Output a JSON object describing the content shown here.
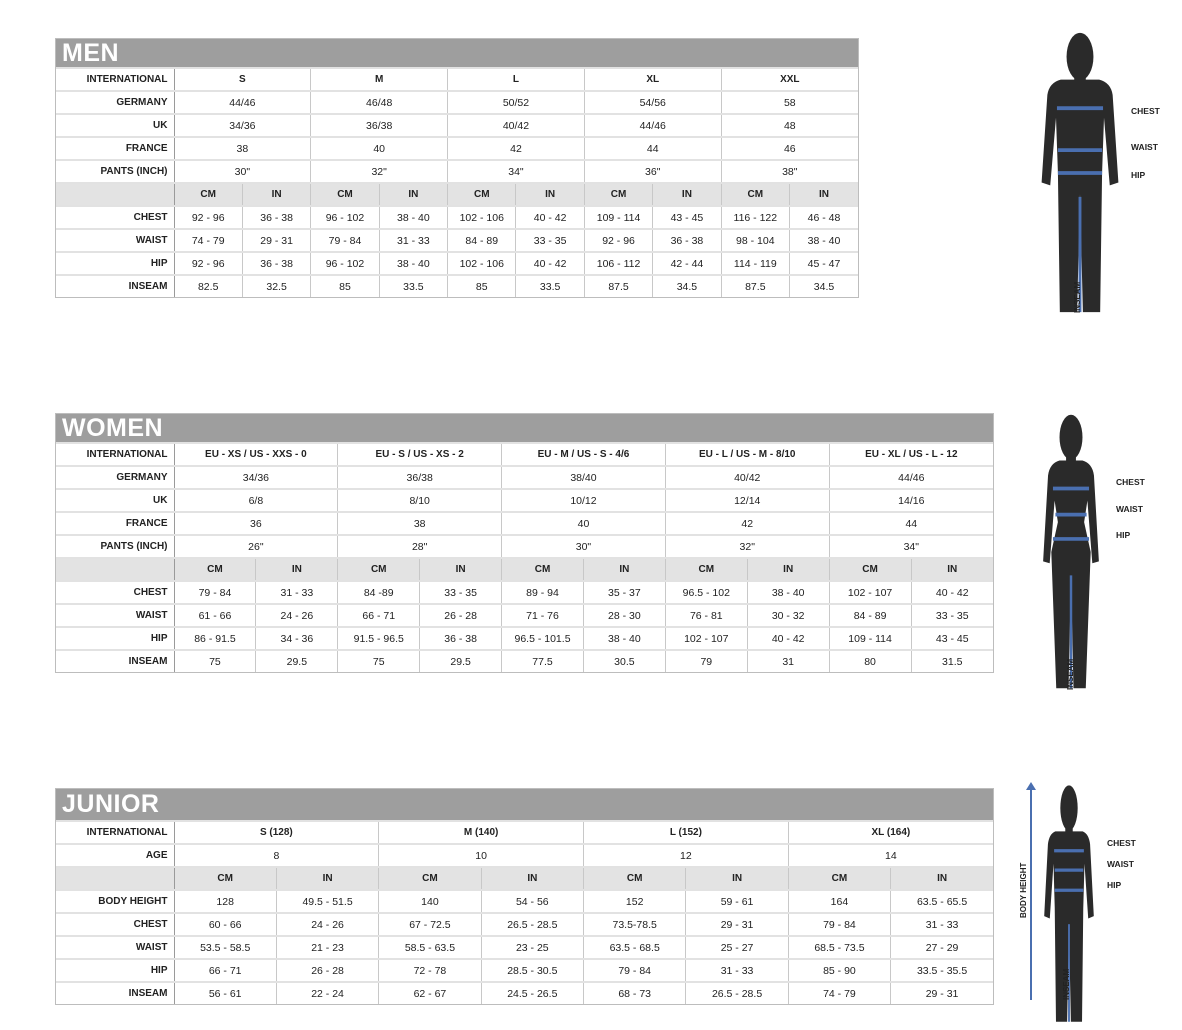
{
  "colors": {
    "title_bar": "#9e9e9e",
    "unit_row": "#e3e3e3",
    "silhouette": "#2a2a2a",
    "measure_line": "#4a6fb0"
  },
  "men": {
    "title": "MEN",
    "header_rows": [
      {
        "label": "INTERNATIONAL",
        "values": [
          "S",
          "M",
          "L",
          "XL",
          "XXL"
        ]
      },
      {
        "label": "GERMANY",
        "values": [
          "44/46",
          "46/48",
          "50/52",
          "54/56",
          "58"
        ]
      },
      {
        "label": "UK",
        "values": [
          "34/36",
          "36/38",
          "40/42",
          "44/46",
          "48"
        ]
      },
      {
        "label": "FRANCE",
        "values": [
          "38",
          "40",
          "42",
          "44",
          "46"
        ]
      },
      {
        "label": "PANTS (INCH)",
        "values": [
          "30\"",
          "32\"",
          "34\"",
          "36\"",
          "38\""
        ]
      }
    ],
    "units": [
      "CM",
      "IN"
    ],
    "measure_rows": [
      {
        "label": "CHEST",
        "values": [
          "92 - 96",
          "36 - 38",
          "96 - 102",
          "38 - 40",
          "102 - 106",
          "40 - 42",
          "109 - 114",
          "43 - 45",
          "116 - 122",
          "46 - 48"
        ]
      },
      {
        "label": "WAIST",
        "values": [
          "74 - 79",
          "29 - 31",
          "79 - 84",
          "31 - 33",
          "84 - 89",
          "33 - 35",
          "92 - 96",
          "36 - 38",
          "98 - 104",
          "38 - 40"
        ]
      },
      {
        "label": "HIP",
        "values": [
          "92 - 96",
          "36 - 38",
          "96 - 102",
          "38 - 40",
          "102 - 106",
          "40 - 42",
          "106 - 112",
          "42 - 44",
          "114 - 119",
          "45 - 47"
        ]
      },
      {
        "label": "INSEAM",
        "values": [
          "82.5",
          "32.5",
          "85",
          "33.5",
          "85",
          "33.5",
          "87.5",
          "34.5",
          "87.5",
          "34.5"
        ]
      }
    ],
    "figure_labels": {
      "chest": "CHEST",
      "waist": "WAIST",
      "hip": "HIP",
      "inseam": "INSEAM"
    }
  },
  "women": {
    "title": "WOMEN",
    "header_rows": [
      {
        "label": "INTERNATIONAL",
        "values": [
          "EU - XS / US - XXS - 0",
          "EU - S / US - XS - 2",
          "EU - M / US - S - 4/6",
          "EU - L / US - M - 8/10",
          "EU - XL / US - L - 12"
        ]
      },
      {
        "label": "GERMANY",
        "values": [
          "34/36",
          "36/38",
          "38/40",
          "40/42",
          "44/46"
        ]
      },
      {
        "label": "UK",
        "values": [
          "6/8",
          "8/10",
          "10/12",
          "12/14",
          "14/16"
        ]
      },
      {
        "label": "FRANCE",
        "values": [
          "36",
          "38",
          "40",
          "42",
          "44"
        ]
      },
      {
        "label": "PANTS (INCH)",
        "values": [
          "26\"",
          "28\"",
          "30\"",
          "32\"",
          "34\""
        ]
      }
    ],
    "units": [
      "CM",
      "IN"
    ],
    "measure_rows": [
      {
        "label": "CHEST",
        "values": [
          "79 - 84",
          "31 - 33",
          "84 -89",
          "33 - 35",
          "89 - 94",
          "35 - 37",
          "96.5 - 102",
          "38 - 40",
          "102 - 107",
          "40 - 42"
        ]
      },
      {
        "label": "WAIST",
        "values": [
          "61 - 66",
          "24 - 26",
          "66 - 71",
          "26 - 28",
          "71 - 76",
          "28 - 30",
          "76 - 81",
          "30 - 32",
          "84 - 89",
          "33 - 35"
        ]
      },
      {
        "label": "HIP",
        "values": [
          "86 - 91.5",
          "34 - 36",
          "91.5 - 96.5",
          "36 - 38",
          "96.5 - 101.5",
          "38 - 40",
          "102 - 107",
          "40 - 42",
          "109 - 114",
          "43 - 45"
        ]
      },
      {
        "label": "INSEAM",
        "values": [
          "75",
          "29.5",
          "75",
          "29.5",
          "77.5",
          "30.5",
          "79",
          "31",
          "80",
          "31.5"
        ]
      }
    ],
    "figure_labels": {
      "chest": "CHEST",
      "waist": "WAIST",
      "hip": "HIP",
      "inseam": "INSEAM"
    }
  },
  "junior": {
    "title": "JUNIOR",
    "header_rows": [
      {
        "label": "INTERNATIONAL",
        "values": [
          "S (128)",
          "M (140)",
          "L (152)",
          "XL (164)"
        ]
      },
      {
        "label": "AGE",
        "values": [
          "8",
          "10",
          "12",
          "14"
        ]
      }
    ],
    "units": [
      "CM",
      "IN"
    ],
    "measure_rows": [
      {
        "label": "BODY HEIGHT",
        "values": [
          "128",
          "49.5 - 51.5",
          "140",
          "54 - 56",
          "152",
          "59 - 61",
          "164",
          "63.5 - 65.5"
        ]
      },
      {
        "label": "CHEST",
        "values": [
          "60 - 66",
          "24 - 26",
          "67 - 72.5",
          "26.5 - 28.5",
          "73.5-78.5",
          "29 - 31",
          "79 - 84",
          "31 - 33"
        ]
      },
      {
        "label": "WAIST",
        "values": [
          "53.5 - 58.5",
          "21 - 23",
          "58.5 - 63.5",
          "23 - 25",
          "63.5 - 68.5",
          "25 - 27",
          "68.5 - 73.5",
          "27 - 29"
        ]
      },
      {
        "label": "HIP",
        "values": [
          "66 - 71",
          "26 - 28",
          "72 - 78",
          "28.5 - 30.5",
          "79 - 84",
          "31 - 33",
          "85 - 90",
          "33.5 - 35.5"
        ]
      },
      {
        "label": "INSEAM",
        "values": [
          "56 - 61",
          "22 - 24",
          "62 - 67",
          "24.5 - 26.5",
          "68 - 73",
          "26.5 - 28.5",
          "74 - 79",
          "29 - 31"
        ]
      }
    ],
    "figure_labels": {
      "chest": "CHEST",
      "waist": "WAIST",
      "hip": "HIP",
      "inseam": "INSEAM",
      "body_height": "BODY HEIGHT"
    }
  }
}
